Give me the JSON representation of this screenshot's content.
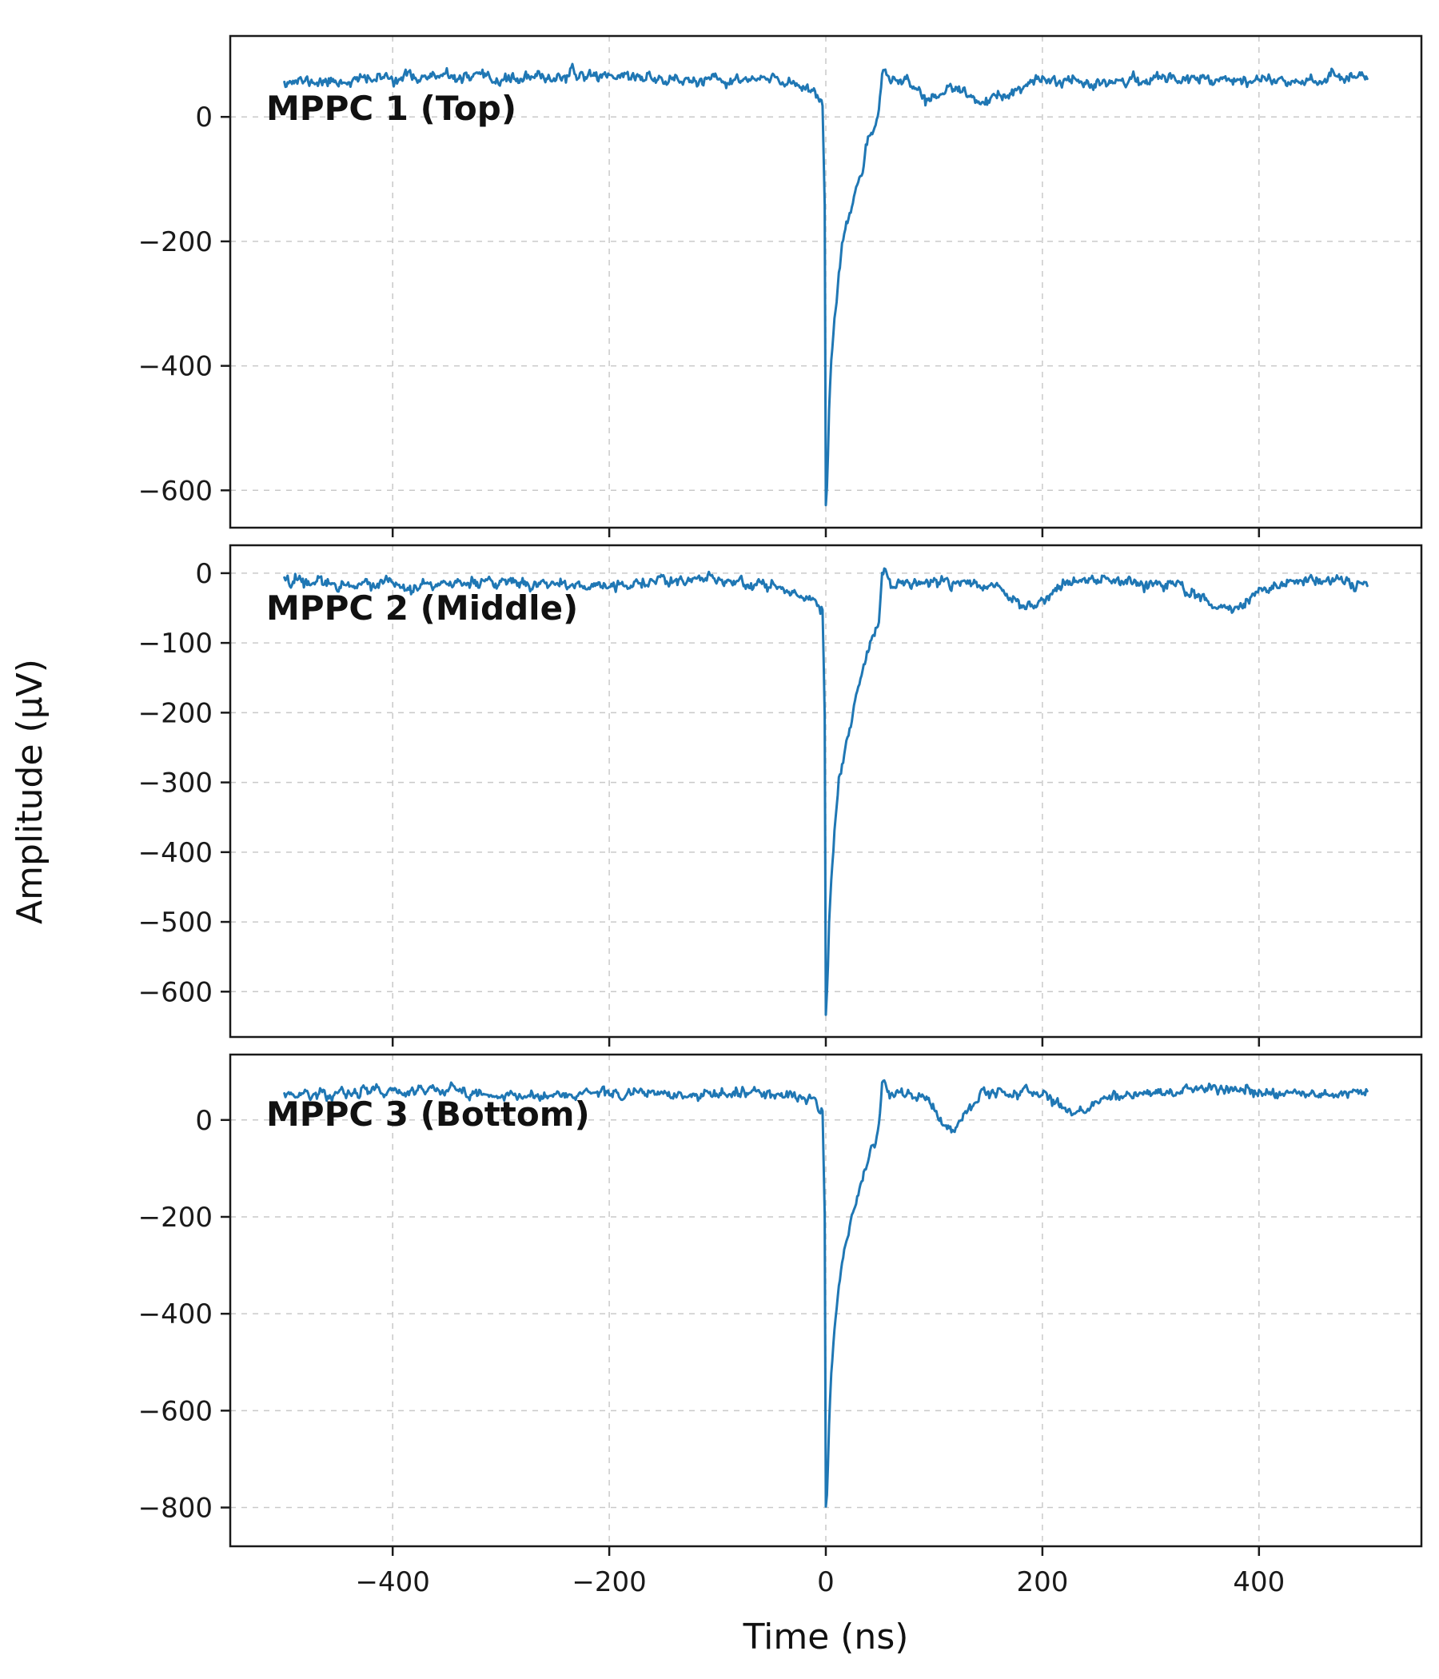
{
  "chart_data": {
    "type": "line",
    "title": "",
    "xlabel": "Time (ns)",
    "ylabel": "Amplitude (µV)",
    "line_color": "#1f77b4",
    "line_width": 3,
    "grid": {
      "on": true,
      "color": "#c9c9c9",
      "dash": "7 7"
    },
    "x": {
      "range": [
        -500,
        500
      ],
      "step": 1,
      "lim": [
        -550,
        550
      ],
      "ticks": [
        -400,
        -200,
        0,
        200,
        400
      ],
      "tick_labels": [
        "−400",
        "−200",
        "0",
        "200",
        "400"
      ]
    },
    "pulse_shape": [
      [
        -60,
        0
      ],
      [
        -30,
        0.012
      ],
      [
        -10,
        0.03
      ],
      [
        -3,
        0.06
      ],
      [
        -1,
        0.3
      ],
      [
        0,
        1
      ],
      [
        1.5,
        0.95
      ],
      [
        3,
        0.8
      ],
      [
        5,
        0.68
      ],
      [
        8,
        0.57
      ],
      [
        12,
        0.47
      ],
      [
        16,
        0.4
      ],
      [
        20,
        0.345
      ],
      [
        25,
        0.29
      ],
      [
        30,
        0.24
      ],
      [
        35,
        0.195
      ],
      [
        40,
        0.155
      ],
      [
        44,
        0.125
      ],
      [
        47,
        0.1
      ],
      [
        49,
        0.08
      ],
      [
        50,
        0.05
      ],
      [
        51,
        0.015
      ],
      [
        52,
        -0.02
      ],
      [
        54,
        -0.03
      ],
      [
        57,
        -0.015
      ],
      [
        60,
        0
      ]
    ],
    "panels": [
      {
        "label": "MPPC 1 (Top)",
        "baseline_uV": 62,
        "peak_uV": -615,
        "noise_sigma_uV": 5,
        "wander_amp_uV": 5,
        "dips": [
          [
            95,
            10,
            28
          ],
          [
            150,
            26,
            42
          ]
        ],
        "ylim": [
          -660,
          130
        ],
        "yticks": [
          0,
          -200,
          -400,
          -600
        ],
        "ytick_labels": [
          "0",
          "−200",
          "−400",
          "−600"
        ],
        "seed": 11
      },
      {
        "label": "MPPC 2 (Middle)",
        "baseline_uV": -15,
        "peak_uV": -630,
        "noise_sigma_uV": 4.5,
        "wander_amp_uV": 4,
        "dips": [
          [
            190,
            16,
            30
          ],
          [
            370,
            20,
            33
          ]
        ],
        "ylim": [
          -665,
          40
        ],
        "yticks": [
          0,
          -100,
          -200,
          -300,
          -400,
          -500,
          -600
        ],
        "ytick_labels": [
          "0",
          "−100",
          "−200",
          "−300",
          "−400",
          "−500",
          "−600"
        ],
        "seed": 22
      },
      {
        "label": "MPPC 3 (Bottom)",
        "baseline_uV": 55,
        "peak_uV": -810,
        "noise_sigma_uV": 6,
        "wander_amp_uV": 6,
        "dips": [
          [
            115,
            12,
            70
          ],
          [
            230,
            12,
            40
          ]
        ],
        "ylim": [
          -880,
          135
        ],
        "yticks": [
          0,
          -200,
          -400,
          -600,
          -800
        ],
        "ytick_labels": [
          "0",
          "−200",
          "−400",
          "−600",
          "−800"
        ],
        "seed": 33
      }
    ]
  }
}
